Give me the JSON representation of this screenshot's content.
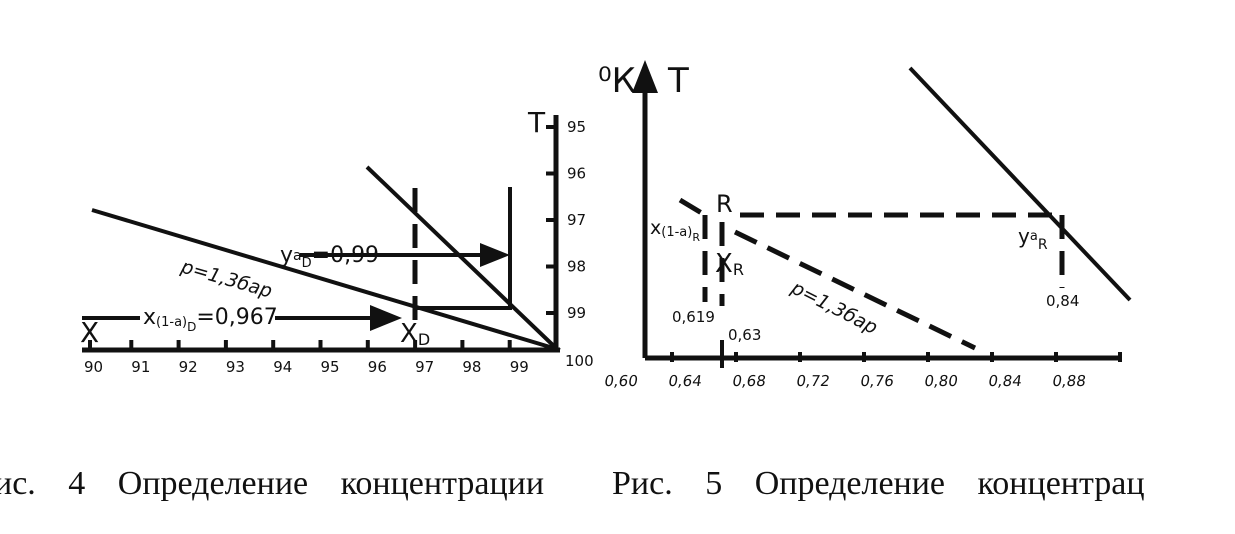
{
  "figure4": {
    "x_axis": "X",
    "t_axis": "T",
    "x_ticks": [
      "90",
      "91",
      "92",
      "93",
      "94",
      "95",
      "96",
      "97",
      "98",
      "99"
    ],
    "corner": "100",
    "t_ticks": [
      "95",
      "96",
      "97",
      "98",
      "99"
    ],
    "pressure": "p=1,3бар",
    "ya": {
      "base": "y",
      "sub": "a",
      "subsub": "D",
      "value": "=0,99"
    },
    "xa": {
      "base": "x",
      "sub": "(1-a)",
      "subsub": "D",
      "value": "=0,967"
    },
    "xd": {
      "base": "X",
      "sub": "D"
    }
  },
  "figure5": {
    "unit": "⁰К",
    "t_axis": "T",
    "x_ticks": [
      "0,60",
      "0,64",
      "0,68",
      "0,72",
      "0,76",
      "0,80",
      "0,84",
      "0,88"
    ],
    "r_label": "R",
    "xa": {
      "base": "x",
      "sub": "(1-a)",
      "subsub": "R"
    },
    "xr": {
      "base": "X",
      "sub": "R"
    },
    "v619": "0,619",
    "v63": "0,63",
    "pressure": "p=1,3бар",
    "ya": {
      "base": "y",
      "sub": "a",
      "subsub": "R"
    },
    "v84": "0,84"
  },
  "captions": [
    "ис. 4 Определение концентрации",
    "Рис. 5 Определение концентрац"
  ]
}
